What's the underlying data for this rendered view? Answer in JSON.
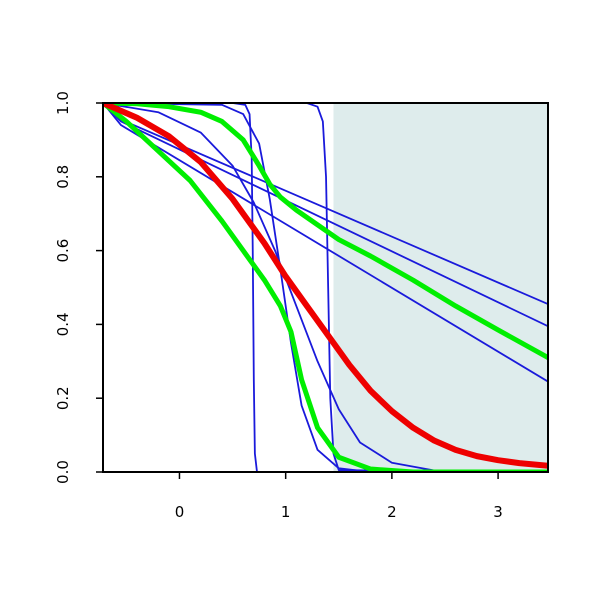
{
  "chart_data": {
    "type": "line",
    "title": "",
    "xlabel": "",
    "ylabel": "",
    "xlim": [
      -0.72,
      3.47
    ],
    "ylim": [
      0.0,
      1.0
    ],
    "x_ticks": [
      {
        "value": 0,
        "label": "0"
      },
      {
        "value": 1,
        "label": "1"
      },
      {
        "value": 2,
        "label": "2"
      },
      {
        "value": 3,
        "label": "3"
      }
    ],
    "y_ticks": [
      {
        "value": 0.0,
        "label": "0.0"
      },
      {
        "value": 0.2,
        "label": "0.2"
      },
      {
        "value": 0.4,
        "label": "0.4"
      },
      {
        "value": 0.6,
        "label": "0.6"
      },
      {
        "value": 0.8,
        "label": "0.8"
      },
      {
        "value": 1.0,
        "label": "1.0"
      }
    ],
    "shaded_region": {
      "x_from": 1.45,
      "x_to": 3.47,
      "color": "#deecec"
    },
    "grid": false,
    "legend": "none",
    "colors": {
      "blue": "#1a1adb",
      "green": "#00ee00",
      "red": "#ee0000"
    },
    "series": [
      {
        "color": "blue",
        "width": 1.8,
        "points": [
          [
            -0.72,
            1.0
          ],
          [
            0.5,
            1.0
          ],
          [
            0.62,
            0.995
          ],
          [
            0.66,
            0.97
          ],
          [
            0.68,
            0.85
          ],
          [
            0.69,
            0.6
          ],
          [
            0.7,
            0.25
          ],
          [
            0.71,
            0.05
          ],
          [
            0.73,
            0.0
          ],
          [
            3.47,
            0.0
          ]
        ]
      },
      {
        "color": "blue",
        "width": 1.8,
        "points": [
          [
            -0.72,
            1.0
          ],
          [
            1.2,
            1.0
          ],
          [
            1.3,
            0.99
          ],
          [
            1.35,
            0.95
          ],
          [
            1.38,
            0.8
          ],
          [
            1.4,
            0.5
          ],
          [
            1.42,
            0.2
          ],
          [
            1.45,
            0.05
          ],
          [
            1.5,
            0.005
          ],
          [
            3.47,
            0.0
          ]
        ]
      },
      {
        "color": "blue",
        "width": 1.8,
        "points": [
          [
            -0.72,
            1.0
          ],
          [
            0.4,
            0.995
          ],
          [
            0.6,
            0.97
          ],
          [
            0.75,
            0.89
          ],
          [
            0.85,
            0.74
          ],
          [
            0.95,
            0.55
          ],
          [
            1.05,
            0.35
          ],
          [
            1.15,
            0.18
          ],
          [
            1.3,
            0.06
          ],
          [
            1.5,
            0.01
          ],
          [
            1.8,
            0.0
          ],
          [
            3.47,
            0.0
          ]
        ]
      },
      {
        "color": "blue",
        "width": 1.8,
        "points": [
          [
            -0.72,
            1.0
          ],
          [
            -0.2,
            0.975
          ],
          [
            0.2,
            0.92
          ],
          [
            0.5,
            0.83
          ],
          [
            0.7,
            0.73
          ],
          [
            0.9,
            0.6
          ],
          [
            1.1,
            0.45
          ],
          [
            1.3,
            0.3
          ],
          [
            1.5,
            0.17
          ],
          [
            1.7,
            0.08
          ],
          [
            2.0,
            0.025
          ],
          [
            2.4,
            0.004
          ],
          [
            3.47,
            0.0
          ]
        ]
      },
      {
        "color": "blue",
        "width": 1.8,
        "points": [
          [
            -0.72,
            1.0
          ],
          [
            -0.55,
            0.955
          ],
          [
            3.47,
            0.455
          ]
        ]
      },
      {
        "color": "blue",
        "width": 1.8,
        "points": [
          [
            -0.72,
            1.0
          ],
          [
            -0.55,
            0.95
          ],
          [
            3.47,
            0.395
          ]
        ]
      },
      {
        "color": "blue",
        "width": 1.8,
        "points": [
          [
            -0.72,
            1.0
          ],
          [
            -0.55,
            0.94
          ],
          [
            3.47,
            0.245
          ]
        ]
      },
      {
        "color": "green",
        "width": 5,
        "points": [
          [
            -0.72,
            1.0
          ],
          [
            -0.4,
            0.998
          ],
          [
            -0.1,
            0.99
          ],
          [
            0.2,
            0.975
          ],
          [
            0.4,
            0.95
          ],
          [
            0.6,
            0.9
          ],
          [
            0.75,
            0.83
          ],
          [
            0.85,
            0.78
          ],
          [
            0.95,
            0.745
          ],
          [
            1.1,
            0.71
          ],
          [
            1.3,
            0.67
          ],
          [
            1.5,
            0.63
          ],
          [
            1.8,
            0.585
          ],
          [
            2.2,
            0.52
          ],
          [
            2.6,
            0.45
          ],
          [
            3.0,
            0.385
          ],
          [
            3.47,
            0.31
          ]
        ]
      },
      {
        "color": "green",
        "width": 5,
        "points": [
          [
            -0.72,
            1.0
          ],
          [
            -0.5,
            0.95
          ],
          [
            -0.2,
            0.87
          ],
          [
            0.1,
            0.79
          ],
          [
            0.4,
            0.68
          ],
          [
            0.6,
            0.6
          ],
          [
            0.8,
            0.52
          ],
          [
            0.95,
            0.45
          ],
          [
            1.05,
            0.38
          ],
          [
            1.15,
            0.25
          ],
          [
            1.3,
            0.12
          ],
          [
            1.5,
            0.04
          ],
          [
            1.8,
            0.008
          ],
          [
            2.2,
            0.0
          ],
          [
            3.47,
            0.0
          ]
        ]
      },
      {
        "color": "red",
        "width": 6,
        "points": [
          [
            -0.72,
            1.0
          ],
          [
            -0.4,
            0.96
          ],
          [
            -0.1,
            0.91
          ],
          [
            0.2,
            0.84
          ],
          [
            0.5,
            0.74
          ],
          [
            0.8,
            0.62
          ],
          [
            1.0,
            0.53
          ],
          [
            1.2,
            0.45
          ],
          [
            1.4,
            0.37
          ],
          [
            1.6,
            0.29
          ],
          [
            1.8,
            0.22
          ],
          [
            2.0,
            0.165
          ],
          [
            2.2,
            0.12
          ],
          [
            2.4,
            0.085
          ],
          [
            2.6,
            0.06
          ],
          [
            2.8,
            0.043
          ],
          [
            3.0,
            0.032
          ],
          [
            3.2,
            0.024
          ],
          [
            3.47,
            0.017
          ]
        ]
      }
    ]
  }
}
